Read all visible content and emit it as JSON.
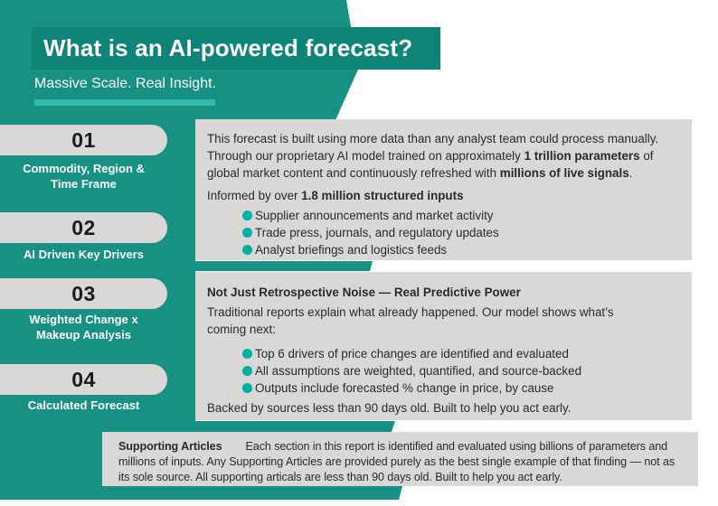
{
  "page": {
    "title": "What is an AI-powered forecast?",
    "subtitle": "Massive Scale. Real Insight."
  },
  "colors": {
    "teal_main": "#169184",
    "teal_dark": "#0d8477",
    "teal_accent_bar": "#33b9aa",
    "bullet_dot": "#00b1a3",
    "box_gray": "#d9d8d6",
    "text_dark": "#2b2a28"
  },
  "steps": [
    {
      "number": "01",
      "label": "Commodity, Region & Time Frame"
    },
    {
      "number": "02",
      "label": "AI Driven Key Drivers"
    },
    {
      "number": "03",
      "label": "Weighted Change x Makeup Analysis"
    },
    {
      "number": "04",
      "label": "Calculated Forecast"
    }
  ],
  "box1": {
    "para1": {
      "pre": "This forecast is built using more data than any analyst team could process manually. Through our proprietary AI model trained on approximately ",
      "bold1": "1 trillion parameters",
      "mid": " of global market content and continuously refreshed with ",
      "bold2": "millions of live signals",
      "end": "."
    },
    "para2": {
      "pre": "Informed by over ",
      "bold": "1.8 million structured inputs"
    },
    "bullets": [
      "Supplier announcements and market activity",
      "Trade press, journals, and regulatory updates",
      "Analyst briefings and logistics feeds"
    ]
  },
  "box2": {
    "heading": "Not Just Retrospective Noise — Real Predictive Power",
    "para": "Traditional reports explain what already happened. Our model shows what’s coming next:",
    "bullets": [
      "Top 6 drivers of price changes are identified and evaluated",
      "All assumptions are weighted, quantified, and source-backed",
      "Outputs include forecasted % change in price, by cause"
    ],
    "footer": "Backed by sources less than 90 days old. Built to help you act early."
  },
  "support": {
    "heading": "Supporting Articles",
    "body": "Each section in this report is identified and evaluated using billions of parameters and millions of inputs. Any Supporting Articles are provided purely as the best single example of that finding — not as its sole source. All supporting articals are less than 90 days old. Built to help you act early."
  }
}
